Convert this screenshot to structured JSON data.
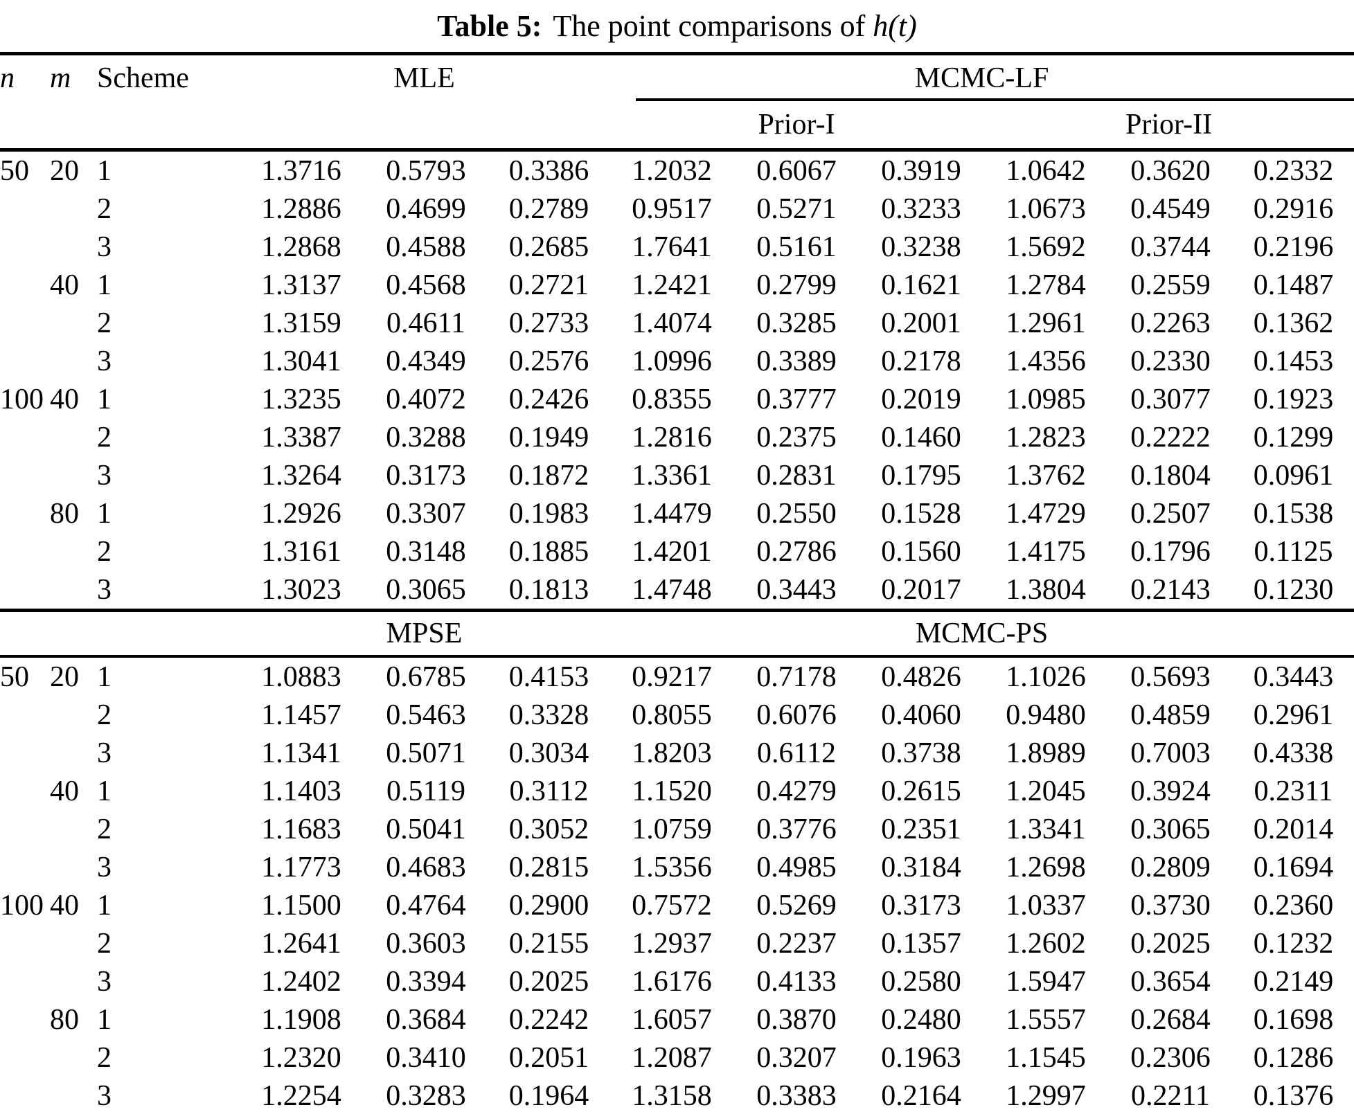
{
  "title": {
    "prefix": "Table 5:",
    "body": "The point comparisons of ",
    "math": "h(t)"
  },
  "header": {
    "col_n": "n",
    "col_m": "m",
    "col_scheme": "Scheme",
    "block1_classical": "MLE",
    "block1_bayes": "MCMC-LF",
    "prior1": "Prior-I",
    "prior2": "Prior-II",
    "block2_classical": "MPSE",
    "block2_bayes": "MCMC-PS"
  },
  "colors": {
    "text": "#000000",
    "background": "#ffffff",
    "rule": "#000000"
  },
  "section1_rows": [
    [
      "50",
      "20",
      "1",
      "1.3716",
      "0.5793",
      "0.3386",
      "1.2032",
      "0.6067",
      "0.3919",
      "1.0642",
      "0.3620",
      "0.2332"
    ],
    [
      "",
      "",
      "2",
      "1.2886",
      "0.4699",
      "0.2789",
      "0.9517",
      "0.5271",
      "0.3233",
      "1.0673",
      "0.4549",
      "0.2916"
    ],
    [
      "",
      "",
      "3",
      "1.2868",
      "0.4588",
      "0.2685",
      "1.7641",
      "0.5161",
      "0.3238",
      "1.5692",
      "0.3744",
      "0.2196"
    ],
    [
      "",
      "40",
      "1",
      "1.3137",
      "0.4568",
      "0.2721",
      "1.2421",
      "0.2799",
      "0.1621",
      "1.2784",
      "0.2559",
      "0.1487"
    ],
    [
      "",
      "",
      "2",
      "1.3159",
      "0.4611",
      "0.2733",
      "1.4074",
      "0.3285",
      "0.2001",
      "1.2961",
      "0.2263",
      "0.1362"
    ],
    [
      "",
      "",
      "3",
      "1.3041",
      "0.4349",
      "0.2576",
      "1.0996",
      "0.3389",
      "0.2178",
      "1.4356",
      "0.2330",
      "0.1453"
    ],
    [
      "100",
      "40",
      "1",
      "1.3235",
      "0.4072",
      "0.2426",
      "0.8355",
      "0.3777",
      "0.2019",
      "1.0985",
      "0.3077",
      "0.1923"
    ],
    [
      "",
      "",
      "2",
      "1.3387",
      "0.3288",
      "0.1949",
      "1.2816",
      "0.2375",
      "0.1460",
      "1.2823",
      "0.2222",
      "0.1299"
    ],
    [
      "",
      "",
      "3",
      "1.3264",
      "0.3173",
      "0.1872",
      "1.3361",
      "0.2831",
      "0.1795",
      "1.3762",
      "0.1804",
      "0.0961"
    ],
    [
      "",
      "80",
      "1",
      "1.2926",
      "0.3307",
      "0.1983",
      "1.4479",
      "0.2550",
      "0.1528",
      "1.4729",
      "0.2507",
      "0.1538"
    ],
    [
      "",
      "",
      "2",
      "1.3161",
      "0.3148",
      "0.1885",
      "1.4201",
      "0.2786",
      "0.1560",
      "1.4175",
      "0.1796",
      "0.1125"
    ],
    [
      "",
      "",
      "3",
      "1.3023",
      "0.3065",
      "0.1813",
      "1.4748",
      "0.3443",
      "0.2017",
      "1.3804",
      "0.2143",
      "0.1230"
    ]
  ],
  "section2_rows": [
    [
      "50",
      "20",
      "1",
      "1.0883",
      "0.6785",
      "0.4153",
      "0.9217",
      "0.7178",
      "0.4826",
      "1.1026",
      "0.5693",
      "0.3443"
    ],
    [
      "",
      "",
      "2",
      "1.1457",
      "0.5463",
      "0.3328",
      "0.8055",
      "0.6076",
      "0.4060",
      "0.9480",
      "0.4859",
      "0.2961"
    ],
    [
      "",
      "",
      "3",
      "1.1341",
      "0.5071",
      "0.3034",
      "1.8203",
      "0.6112",
      "0.3738",
      "1.8989",
      "0.7003",
      "0.4338"
    ],
    [
      "",
      "40",
      "1",
      "1.1403",
      "0.5119",
      "0.3112",
      "1.1520",
      "0.4279",
      "0.2615",
      "1.2045",
      "0.3924",
      "0.2311"
    ],
    [
      "",
      "",
      "2",
      "1.1683",
      "0.5041",
      "0.3052",
      "1.0759",
      "0.3776",
      "0.2351",
      "1.3341",
      "0.3065",
      "0.2014"
    ],
    [
      "",
      "",
      "3",
      "1.1773",
      "0.4683",
      "0.2815",
      "1.5356",
      "0.4985",
      "0.3184",
      "1.2698",
      "0.2809",
      "0.1694"
    ],
    [
      "100",
      "40",
      "1",
      "1.1500",
      "0.4764",
      "0.2900",
      "0.7572",
      "0.5269",
      "0.3173",
      "1.0337",
      "0.3730",
      "0.2360"
    ],
    [
      "",
      "",
      "2",
      "1.2641",
      "0.3603",
      "0.2155",
      "1.2937",
      "0.2237",
      "0.1357",
      "1.2602",
      "0.2025",
      "0.1232"
    ],
    [
      "",
      "",
      "3",
      "1.2402",
      "0.3394",
      "0.2025",
      "1.6176",
      "0.4133",
      "0.2580",
      "1.5947",
      "0.3654",
      "0.2149"
    ],
    [
      "",
      "80",
      "1",
      "1.1908",
      "0.3684",
      "0.2242",
      "1.6057",
      "0.3870",
      "0.2480",
      "1.5557",
      "0.2684",
      "0.1698"
    ],
    [
      "",
      "",
      "2",
      "1.2320",
      "0.3410",
      "0.2051",
      "1.2087",
      "0.3207",
      "0.1963",
      "1.1545",
      "0.2306",
      "0.1286"
    ],
    [
      "",
      "",
      "3",
      "1.2254",
      "0.3283",
      "0.1964",
      "1.3158",
      "0.3383",
      "0.2164",
      "1.2997",
      "0.2211",
      "0.1376"
    ]
  ]
}
